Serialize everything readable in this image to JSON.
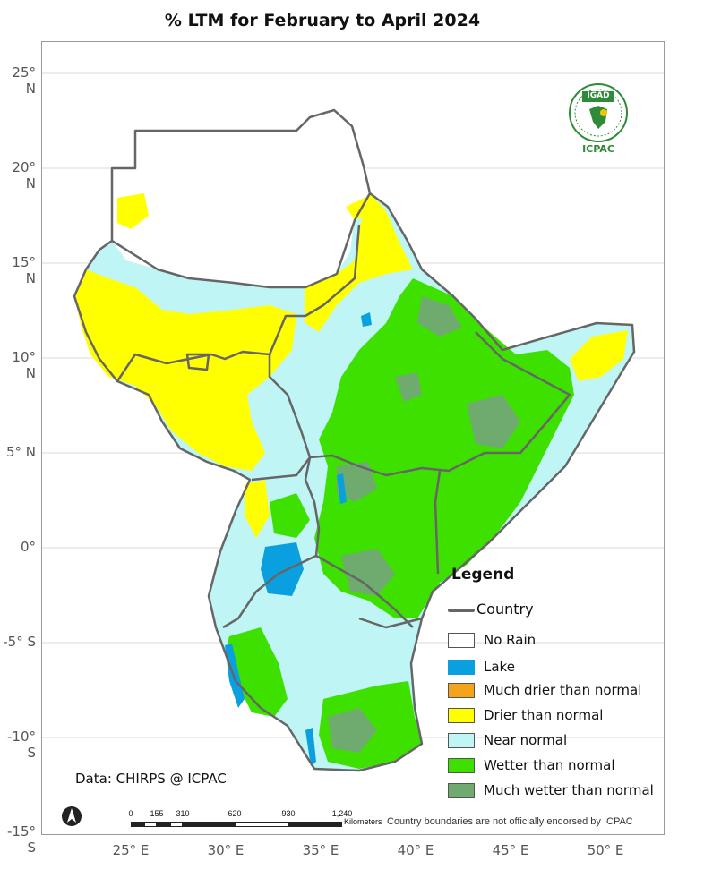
{
  "title": "% LTM  for February to April 2024",
  "latitude_labels": [
    "25° N",
    "20° N",
    "15° N",
    "10° N",
    "5° N",
    "0°",
    "-5° S",
    "-10° S",
    "-15° S"
  ],
  "longitude_labels": [
    "25° E",
    "30° E",
    "35° E",
    "40° E",
    "45° E",
    "50° E"
  ],
  "legend": {
    "title": "Legend",
    "items": [
      {
        "label": "Country",
        "kind": "line",
        "color": "#666666"
      },
      {
        "label": "No Rain",
        "kind": "swatch",
        "color": "#ffffff"
      },
      {
        "label": "Lake",
        "kind": "swatch",
        "color": "#0aa0e0"
      },
      {
        "label": "Much drier than normal",
        "kind": "swatch",
        "color": "#f5a31a"
      },
      {
        "label": "Drier than normal",
        "kind": "swatch",
        "color": "#ffff00"
      },
      {
        "label": "Near normal",
        "kind": "swatch",
        "color": "#bff5f5"
      },
      {
        "label": "Wetter than normal",
        "kind": "swatch",
        "color": "#3ee000"
      },
      {
        "label": "Much wetter than normal",
        "kind": "swatch",
        "color": "#6fab6f"
      }
    ]
  },
  "data_credit": "Data: CHIRPS @ ICPAC",
  "disclaimer": "Country boundaries are not officially endorsed by ICPAC",
  "scalebar": {
    "ticks": [
      "0",
      "155",
      "310",
      "620",
      "930",
      "1,240"
    ],
    "unit": "Kilometers"
  },
  "logo": {
    "top_text": "IGAD",
    "bottom_text": "ICPAC",
    "color": "#2e8b3a"
  },
  "north_arrow_icon": "north-arrow-icon"
}
